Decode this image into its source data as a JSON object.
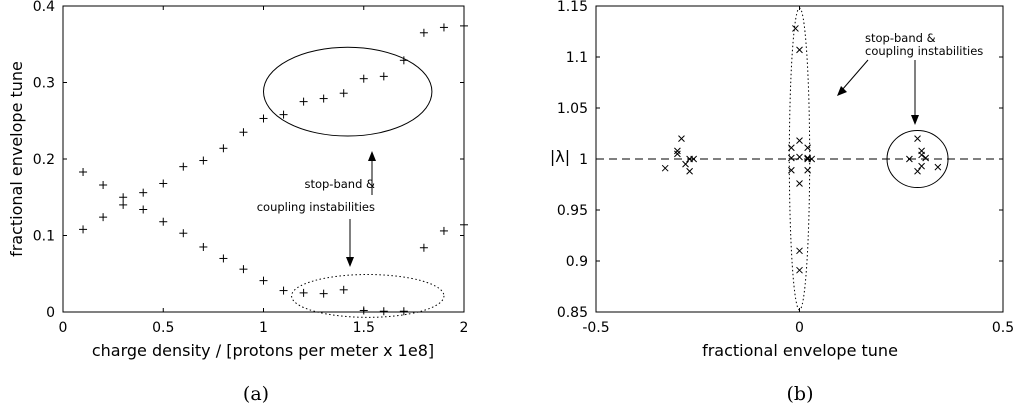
{
  "chart_data": [
    {
      "panel": "(a)",
      "type": "scatter",
      "xlabel": "charge density / [protons per meter x 1e8]",
      "ylabel": "fractional envelope tune",
      "xlim": [
        0,
        2
      ],
      "ylim": [
        0,
        0.4
      ],
      "xticks": [
        "0",
        "0.5",
        "1",
        "1.5",
        "2"
      ],
      "yticks": [
        "0",
        "0.1",
        "0.2",
        "0.3",
        "0.4"
      ],
      "marker": "+",
      "series": [
        {
          "x": [
            0.1,
            0.2,
            0.3,
            0.4,
            0.5,
            0.6,
            0.7,
            0.8,
            0.9,
            1.0,
            1.1,
            1.2,
            1.3,
            1.4,
            1.5,
            1.6,
            1.7,
            1.8,
            1.9,
            2.0
          ],
          "values": [
            0.183,
            0.166,
            0.15,
            0.156,
            0.168,
            0.19,
            0.198,
            0.214,
            0.235,
            0.253,
            0.258,
            0.275,
            0.279,
            0.286,
            0.305,
            0.308,
            0.329,
            0.365,
            0.372,
            0.374
          ]
        },
        {
          "x": [
            0.1,
            0.2,
            0.3,
            0.4,
            0.5,
            0.6,
            0.7,
            0.8,
            0.9,
            1.0,
            1.1,
            1.2,
            1.3,
            1.4,
            1.5,
            1.6,
            1.7,
            1.8,
            1.9,
            2.0
          ],
          "values": [
            0.108,
            0.124,
            0.14,
            0.134,
            0.118,
            0.103,
            0.085,
            0.07,
            0.056,
            0.041,
            0.028,
            0.025,
            0.024,
            0.029,
            0.002,
            0.001,
            0.001,
            0.084,
            0.106,
            0.114
          ]
        }
      ],
      "annotation": {
        "lines": [
          "stop-band &",
          "coupling instabilities"
        ],
        "regions": [
          {
            "style": "solid",
            "cx": 1.42,
            "cy": 0.288,
            "rx": 0.42,
            "ry": 0.058
          },
          {
            "style": "dotted",
            "cx": 1.52,
            "cy": 0.021,
            "rx": 0.38,
            "ry": 0.028
          }
        ]
      },
      "caption": "(a)"
    },
    {
      "panel": "(b)",
      "type": "scatter",
      "xlabel": "fractional envelope tune",
      "ylabel": "|λ|",
      "xlim": [
        -0.5,
        0.5
      ],
      "ylim": [
        0.85,
        1.15
      ],
      "xticks": [
        "-0.5",
        "0",
        "0.5"
      ],
      "yticks": [
        "0.85",
        "0.9",
        "0.95",
        "1",
        "1.05",
        "1.1",
        "1.15"
      ],
      "marker": "×",
      "reference_line": {
        "y": 1,
        "style": "dashed"
      },
      "series": [
        {
          "x": [
            -0.33,
            -0.3,
            -0.3,
            -0.29,
            -0.28,
            -0.27,
            -0.27,
            -0.26,
            0.29,
            0.3,
            0.3,
            0.3,
            0.31,
            0.29,
            0.27,
            0.34,
            -0.02,
            -0.02,
            0.0,
            0.0,
            0.02,
            0.02,
            0.02,
            0.03,
            0.0,
            0.0,
            0.0,
            -0.02,
            0.02,
            -0.01,
            0.0
          ],
          "values": [
            0.991,
            1.005,
            1.008,
            1.02,
            0.995,
            0.988,
            1.0,
            1.0,
            1.02,
            1.008,
            1.004,
            0.993,
            1.001,
            0.988,
            1.0,
            0.992,
            1.011,
            1.001,
            1.018,
            1.002,
            1.0,
            1.011,
            1.001,
            1.0,
            0.976,
            0.891,
            0.91,
            0.989,
            0.989,
            1.128,
            1.107
          ]
        }
      ],
      "annotation": {
        "lines": [
          "stop-band &",
          "coupling instabilities"
        ],
        "regions": [
          {
            "style": "dotted",
            "cx": 0.0,
            "cy": 1.0,
            "rx": 0.025,
            "ry": 0.148
          },
          {
            "style": "solid",
            "cx": 0.29,
            "cy": 1.0,
            "rx": 0.075,
            "ry": 0.028
          }
        ]
      },
      "caption": "(b)"
    }
  ]
}
